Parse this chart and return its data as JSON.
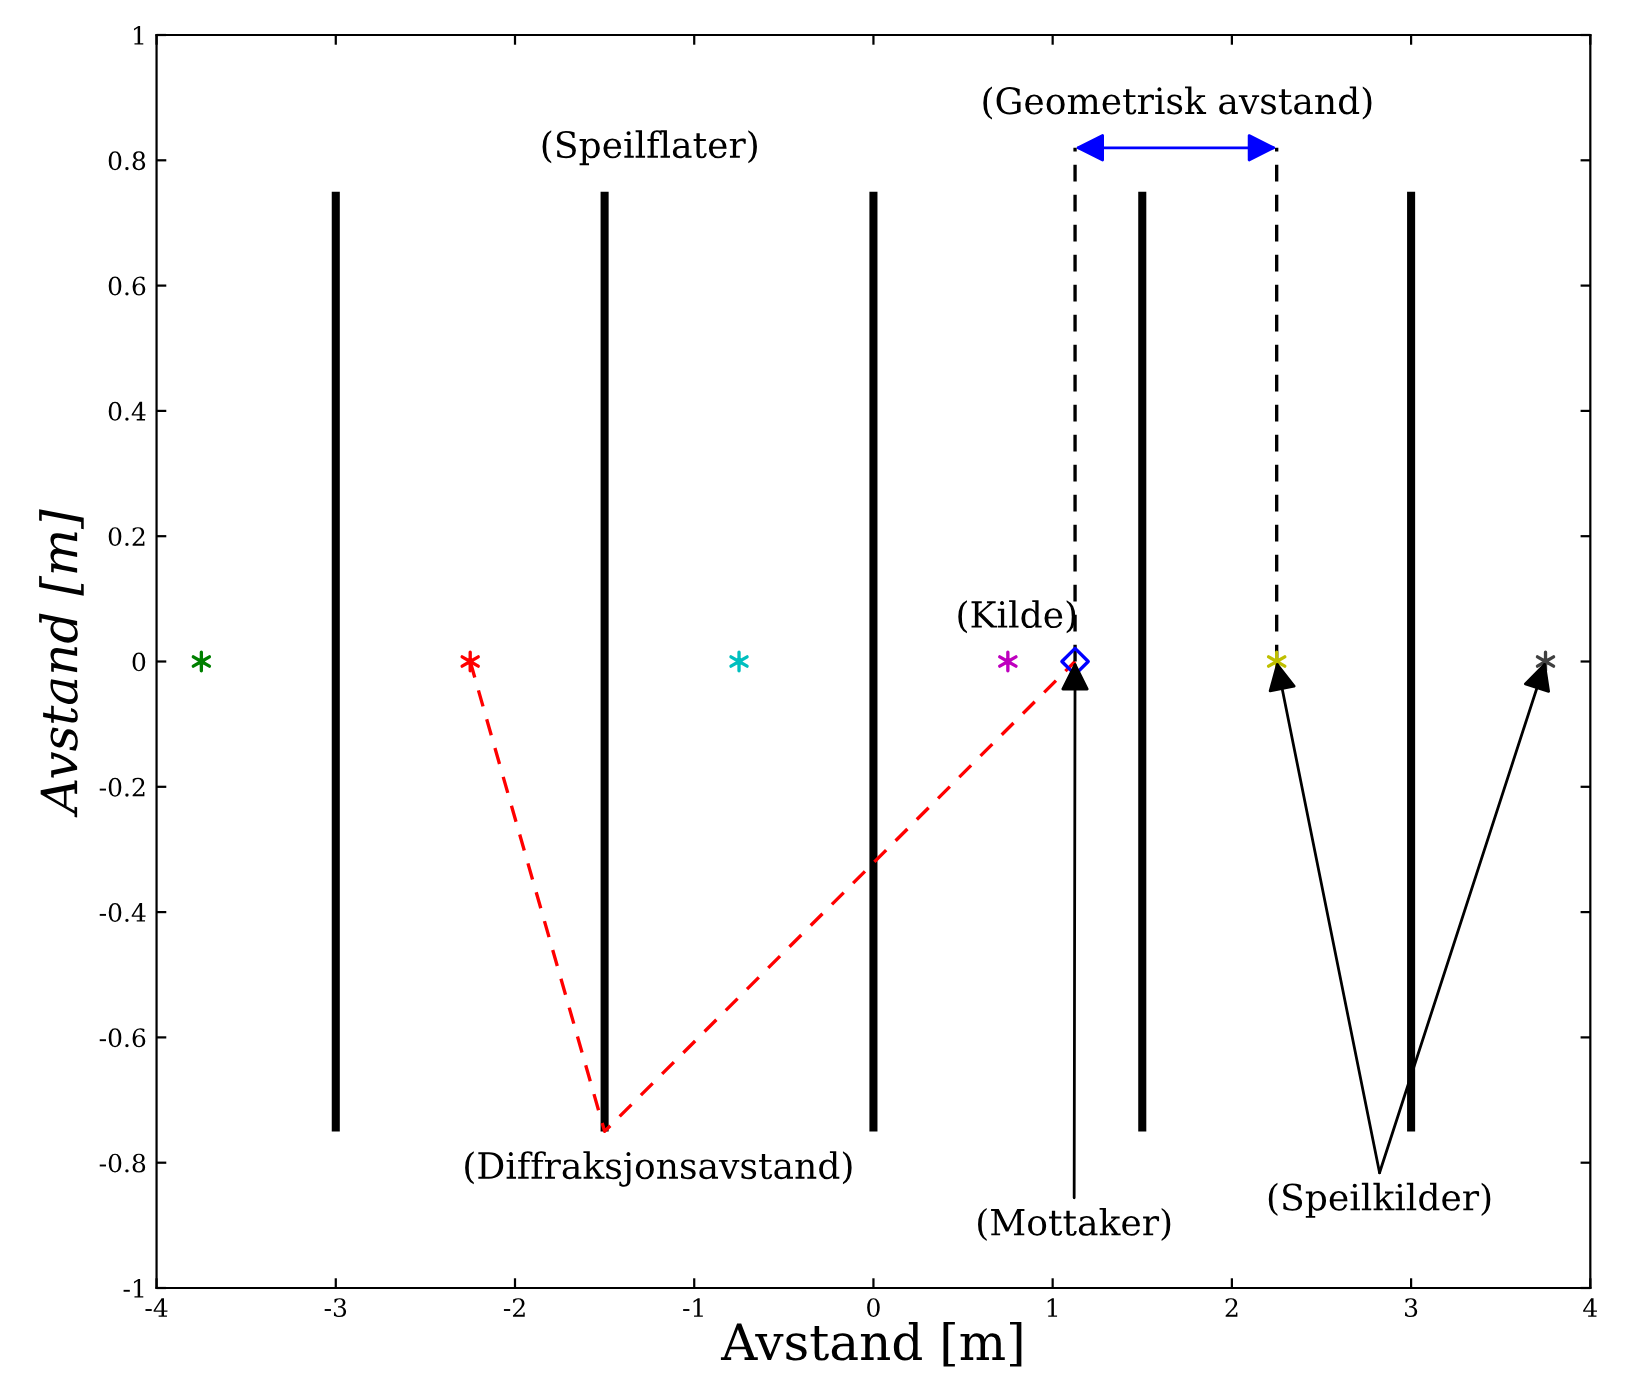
{
  "chart_data": {
    "type": "line",
    "xlabel": "Avstand [m]",
    "ylabel": "Avstand [m]",
    "xlim": [
      -4,
      4
    ],
    "ylim": [
      -1,
      1
    ],
    "xticks": [
      -4,
      -3,
      -2,
      -1,
      0,
      1,
      2,
      3,
      4
    ],
    "yticks": [
      -1,
      -0.8,
      -0.6,
      -0.4,
      -0.2,
      0,
      0.2,
      0.4,
      0.6,
      0.8,
      1
    ],
    "grid": false,
    "legend": false,
    "series": [
      {
        "type": "bar",
        "color": "#000000",
        "x": [
          -3,
          -1.5,
          0,
          1.5,
          3
        ],
        "base": [
          -0.75,
          -0.75,
          -0.75,
          -0.75,
          -0.75
        ],
        "values": [
          1.5,
          1.5,
          1.5,
          1.5,
          1.5
        ]
      },
      {
        "color": "#ff0000",
        "line_style": "dashed",
        "x": [
          -2.25,
          -1.5,
          1.125
        ],
        "values": [
          0,
          -0.75,
          0
        ]
      },
      {
        "color": "#000000",
        "line_style": "dashed",
        "x": [
          1.125,
          1.125
        ],
        "values": [
          0,
          0.82
        ]
      },
      {
        "color": "#000000",
        "line_style": "dashed",
        "x": [
          2.25,
          2.25
        ],
        "values": [
          0,
          0.82
        ]
      },
      {
        "type": "scatter",
        "marker": "cross",
        "color": "#008000",
        "x": [
          -3.75
        ],
        "values": [
          0
        ]
      },
      {
        "type": "scatter",
        "marker": "cross",
        "color": "#ff0000",
        "x": [
          -2.25
        ],
        "values": [
          0
        ]
      },
      {
        "type": "scatter",
        "marker": "cross",
        "color": "#00bfbf",
        "x": [
          -0.75
        ],
        "values": [
          0
        ]
      },
      {
        "type": "scatter",
        "marker": "cross",
        "color": "#bf00bf",
        "x": [
          0.75
        ],
        "values": [
          0
        ]
      },
      {
        "type": "scatter",
        "marker": "cross",
        "color": "#bfbf00",
        "x": [
          2.25
        ],
        "values": [
          0
        ]
      },
      {
        "type": "scatter",
        "marker": "cross",
        "color": "#404040",
        "x": [
          3.75
        ],
        "values": [
          0
        ]
      },
      {
        "type": "scatter",
        "marker": "diamond",
        "color": "#0000ff",
        "x": [
          1.125
        ],
        "values": [
          0
        ]
      }
    ],
    "annotations": [
      "(Speilflater)",
      "(Geometrisk avstand)",
      "(Kilde)",
      "(Diffraksjonsavstand)",
      {
        "text": "(Mottaker)",
        "x": 1.125,
        "y": 0
      },
      {
        "text": "(Speilkilder)",
        "x": 2.25,
        "y": 0
      }
    ]
  }
}
